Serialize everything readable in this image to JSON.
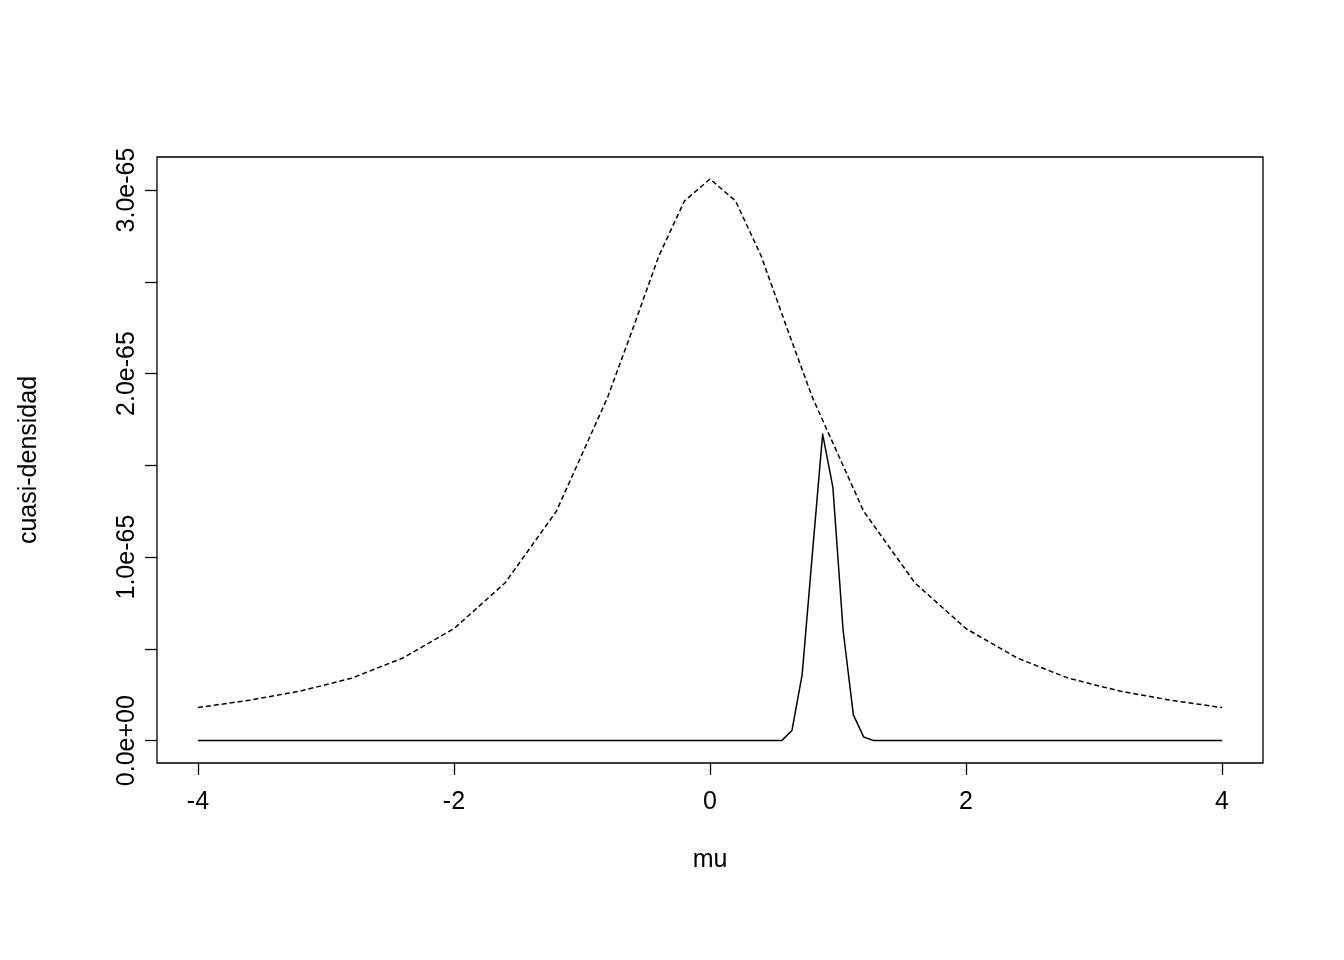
{
  "chart_data": {
    "type": "line",
    "xlabel": "mu",
    "ylabel": "cuasi-densidad",
    "xlim": [
      -4.32,
      4.32
    ],
    "xticks": [
      -4,
      -2,
      0,
      2,
      4
    ],
    "ylim": [
      -1.22e-66,
      3.18e-65
    ],
    "yticks": [
      {
        "value": 0,
        "label": "0.0e+00"
      },
      {
        "value": 5e-66,
        "label": null
      },
      {
        "value": 1e-65,
        "label": "1.0e-65"
      },
      {
        "value": 1.5e-65,
        "label": null
      },
      {
        "value": 2e-65,
        "label": "2.0e-65"
      },
      {
        "value": 2.5e-65,
        "label": null
      },
      {
        "value": 3e-65,
        "label": "3.0e-65"
      }
    ],
    "grid": false,
    "marker": "none",
    "series": [
      {
        "color": "#000000",
        "line_style": "dashed",
        "x": [
          -4,
          -3.6,
          -3.2,
          -2.8,
          -2.4,
          -2,
          -1.6,
          -1.2,
          -0.8,
          -0.6,
          -0.4,
          -0.2,
          0,
          0.2,
          0.4,
          0.6,
          0.8,
          1.2,
          1.6,
          2,
          2.4,
          2.8,
          3.2,
          3.6,
          4
        ],
        "values": [
          1.8e-66,
          2.2e-66,
          2.7e-66,
          3.4e-66,
          4.5e-66,
          6.1e-66,
          8.6e-66,
          1.25e-65,
          1.87e-65,
          2.25e-65,
          2.64e-65,
          2.94e-65,
          3.06e-65,
          2.94e-65,
          2.64e-65,
          2.25e-65,
          1.87e-65,
          1.25e-65,
          8.6e-66,
          6.1e-66,
          4.5e-66,
          3.4e-66,
          2.7e-66,
          2.2e-66,
          1.8e-66
        ]
      },
      {
        "color": "#000000",
        "line_style": "solid",
        "x": [
          -4,
          0.56,
          0.64,
          0.72,
          0.8,
          0.88,
          0.96,
          1.04,
          1.12,
          1.2,
          1.28,
          4
        ],
        "values": [
          0,
          0,
          5.5e-67,
          3.6e-66,
          1.02e-65,
          1.67e-65,
          1.38e-65,
          6e-66,
          1.4e-66,
          2e-67,
          0,
          0
        ]
      }
    ]
  }
}
